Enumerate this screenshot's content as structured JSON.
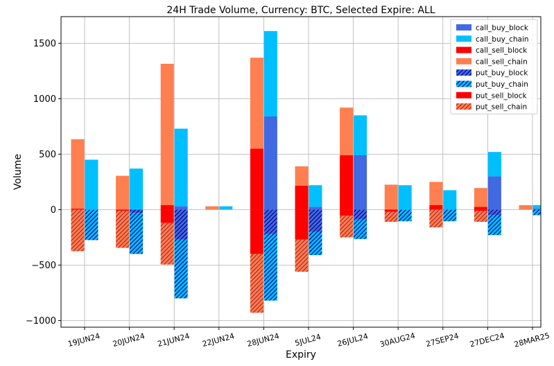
{
  "chart_data": {
    "type": "bar",
    "title": "24H Trade Volume, Currency: BTC, Selected Expire: ALL",
    "xlabel": "Expiry",
    "ylabel": "Volume",
    "ylim": [
      -1060,
      1740
    ],
    "yticks": [
      -1000,
      -500,
      0,
      500,
      1000,
      1500
    ],
    "ytick_labels": [
      "−1000",
      "−500",
      "0",
      "500",
      "1000",
      "1500"
    ],
    "grid": true,
    "legend_position": "top-right",
    "categories": [
      "19JUN24",
      "20JUN24",
      "21JUN24",
      "22JUN24",
      "28JUN24",
      "5JUL24",
      "26JUL24",
      "30AUG24",
      "27SEP24",
      "27DEC24",
      "28MAR25"
    ],
    "series": [
      {
        "name": "call_buy_block",
        "color": "#4169e1",
        "hatch": false,
        "side": "buy",
        "group": "call",
        "values": [
          0,
          0,
          30,
          0,
          840,
          25,
          490,
          0,
          0,
          300,
          10
        ]
      },
      {
        "name": "call_buy_chain",
        "color": "#00bfff",
        "hatch": false,
        "side": "buy",
        "group": "call",
        "values": [
          450,
          370,
          700,
          30,
          770,
          195,
          360,
          220,
          175,
          220,
          30
        ]
      },
      {
        "name": "call_sell_block",
        "color": "#ff0000",
        "hatch": false,
        "side": "sell",
        "group": "call",
        "values": [
          10,
          0,
          40,
          0,
          550,
          215,
          490,
          0,
          40,
          25,
          0
        ]
      },
      {
        "name": "call_sell_chain",
        "color": "#ff7f50",
        "hatch": false,
        "side": "sell",
        "group": "call",
        "values": [
          625,
          305,
          1275,
          30,
          820,
          175,
          430,
          225,
          210,
          170,
          40
        ]
      },
      {
        "name": "put_buy_block",
        "color": "#4169e1",
        "hatch": true,
        "side": "buy",
        "group": "put",
        "values": [
          0,
          -30,
          -270,
          0,
          -220,
          -200,
          -90,
          0,
          0,
          -50,
          0
        ]
      },
      {
        "name": "put_buy_chain",
        "color": "#00bfff",
        "hatch": true,
        "side": "buy",
        "group": "put",
        "values": [
          -275,
          -370,
          -530,
          0,
          -600,
          -210,
          -175,
          -105,
          -105,
          -180,
          -50
        ]
      },
      {
        "name": "put_sell_block",
        "color": "#ff0000",
        "hatch": false,
        "side": "sell",
        "group": "put",
        "values": [
          0,
          -10,
          -120,
          0,
          -400,
          -270,
          -55,
          -20,
          0,
          -10,
          0
        ]
      },
      {
        "name": "put_sell_chain",
        "color": "#ff7f50",
        "hatch": true,
        "side": "sell",
        "group": "put",
        "values": [
          -375,
          -335,
          -375,
          0,
          -530,
          -290,
          -195,
          -90,
          -160,
          -100,
          0
        ]
      }
    ]
  }
}
